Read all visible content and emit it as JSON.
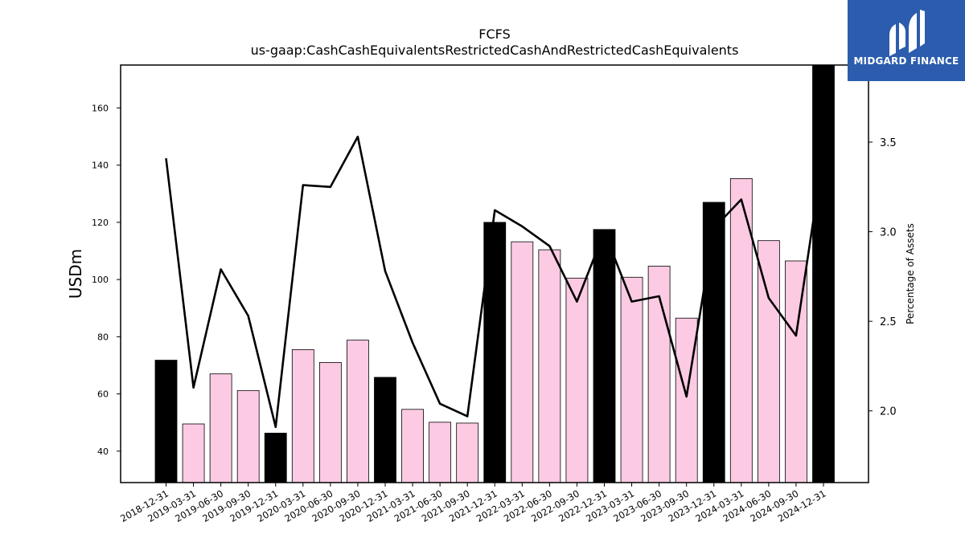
{
  "brand": {
    "name": "MIDGARD FINANCE",
    "bg_color": "#2b5cad"
  },
  "chart_data": {
    "type": "bar",
    "title": "FCFS",
    "subtitle": "us-gaap:CashCashEquivalentsRestrictedCashAndRestrictedCashEquivalents",
    "ylabel": "USDm",
    "y2label": "Percentage of Assets",
    "ylim": [
      29,
      175
    ],
    "y2lim": [
      1.6,
      3.93
    ],
    "yticks": [
      40,
      60,
      80,
      100,
      120,
      140,
      160
    ],
    "y2ticks": [
      2.0,
      2.5,
      3.0,
      3.5
    ],
    "grid": false,
    "categories": [
      "2018-12-31",
      "2019-03-31",
      "2019-06-30",
      "2019-09-30",
      "2019-12-31",
      "2020-03-31",
      "2020-06-30",
      "2020-09-30",
      "2020-12-31",
      "2021-03-31",
      "2021-06-30",
      "2021-09-30",
      "2021-12-31",
      "2022-03-31",
      "2022-06-30",
      "2022-09-30",
      "2022-12-31",
      "2023-03-31",
      "2023-06-30",
      "2023-09-30",
      "2023-12-31",
      "2024-03-31",
      "2024-06-30",
      "2024-09-30",
      "2024-12-31"
    ],
    "series": [
      {
        "kind": "bar",
        "values": [
          71.8,
          49.5,
          67.0,
          61.2,
          46.3,
          75.5,
          71.0,
          78.8,
          65.8,
          54.6,
          50.1,
          49.8,
          120.0,
          113.2,
          110.4,
          100.5,
          117.5,
          100.8,
          104.7,
          86.5,
          127.0,
          135.3,
          113.6,
          106.5,
          175.0
        ],
        "colors": [
          "#000000",
          "#fccbe3",
          "#fccbe3",
          "#fccbe3",
          "#000000",
          "#fccbe3",
          "#fccbe3",
          "#fccbe3",
          "#000000",
          "#fccbe3",
          "#fccbe3",
          "#fccbe3",
          "#000000",
          "#fccbe3",
          "#fccbe3",
          "#fccbe3",
          "#000000",
          "#fccbe3",
          "#fccbe3",
          "#fccbe3",
          "#000000",
          "#fccbe3",
          "#fccbe3",
          "#fccbe3",
          "#000000"
        ]
      },
      {
        "kind": "line",
        "axis": "right",
        "color": "#000000",
        "values": [
          3.41,
          2.13,
          2.79,
          2.53,
          1.91,
          3.26,
          3.25,
          3.53,
          2.78,
          2.38,
          2.04,
          1.97,
          3.12,
          3.03,
          2.92,
          2.61,
          3.0,
          2.61,
          2.64,
          2.08,
          3.02,
          3.18,
          2.63,
          2.42,
          3.44
        ]
      }
    ]
  }
}
